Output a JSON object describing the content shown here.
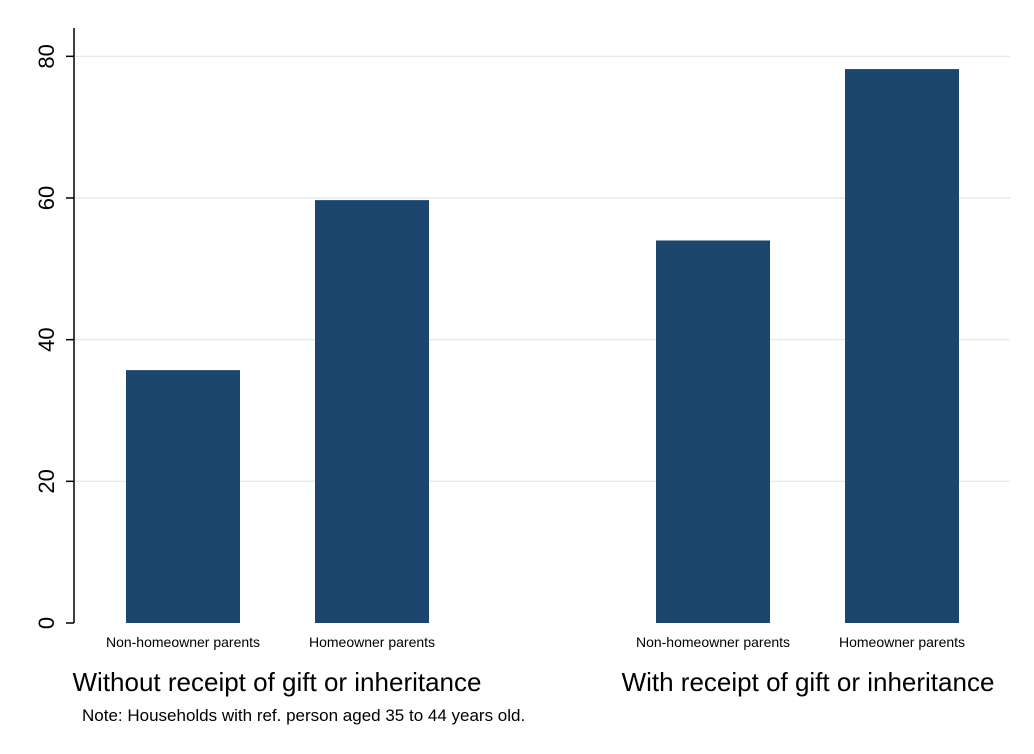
{
  "chart_data": {
    "type": "bar",
    "groups": [
      {
        "label": "Without receipt of gift or inheritance",
        "categories": [
          "Non-homeowner parents",
          "Homeowner parents"
        ],
        "values": [
          35.7,
          59.7
        ]
      },
      {
        "label": "With receipt of gift or inheritance",
        "categories": [
          "Non-homeowner parents",
          "Homeowner parents"
        ],
        "values": [
          54.0,
          78.2
        ]
      }
    ],
    "yticks": [
      0,
      20,
      40,
      60,
      80
    ],
    "ylim": [
      0,
      84
    ],
    "grid": true,
    "note": "Note: Households with ref. person aged 35 to 44 years old.",
    "colors": {
      "bar": "#1c466e",
      "grid": "#e3ecec",
      "axis": "#000000"
    }
  }
}
